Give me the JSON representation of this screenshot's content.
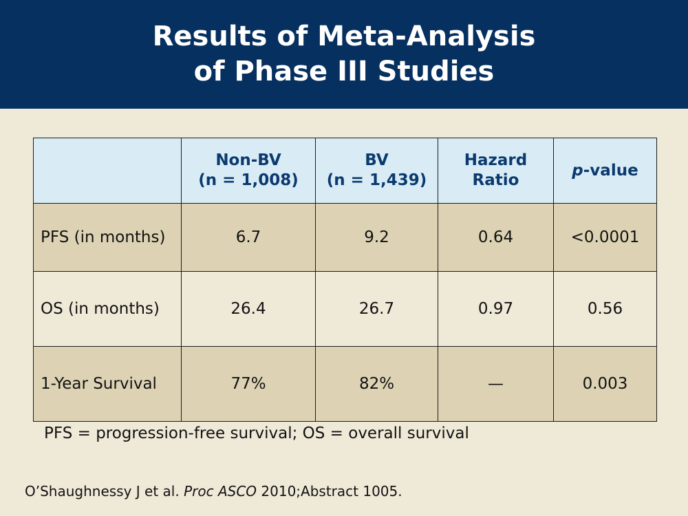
{
  "title": {
    "line1": "Results of Meta-Analysis",
    "line2": "of Phase III Studies"
  },
  "table": {
    "headers": {
      "col1_line1": "Non-BV",
      "col1_line2": "(n = 1,008)",
      "col2_line1": "BV",
      "col2_line2": "(n = 1,439)",
      "col3_line1": "Hazard",
      "col3_line2": "Ratio",
      "col4_italic": "p",
      "col4_rest": "-value"
    },
    "rows": [
      {
        "label": "PFS (in months)",
        "non_bv": "6.7",
        "bv": "9.2",
        "hazard_ratio": "0.64",
        "p_value": "<0.0001"
      },
      {
        "label": "OS (in months)",
        "non_bv": "26.4",
        "bv": "26.7",
        "hazard_ratio": "0.97",
        "p_value": "0.56"
      },
      {
        "label": "1-Year Survival",
        "non_bv": "77%",
        "bv": "82%",
        "hazard_ratio": "—",
        "p_value": "0.003"
      }
    ]
  },
  "footnote": "PFS = progression-free survival; OS = overall survival",
  "citation": {
    "authors": "O’Shaughnessy J et al.",
    "journal": "Proc ASCO",
    "rest": "2010;Abstract 1005."
  },
  "colors": {
    "title_bar": "#06305f",
    "background": "#efe9d8",
    "header_row": "#d9ecf6",
    "shaded_row": "#ddd3b4",
    "header_text": "#0b3a6e"
  }
}
